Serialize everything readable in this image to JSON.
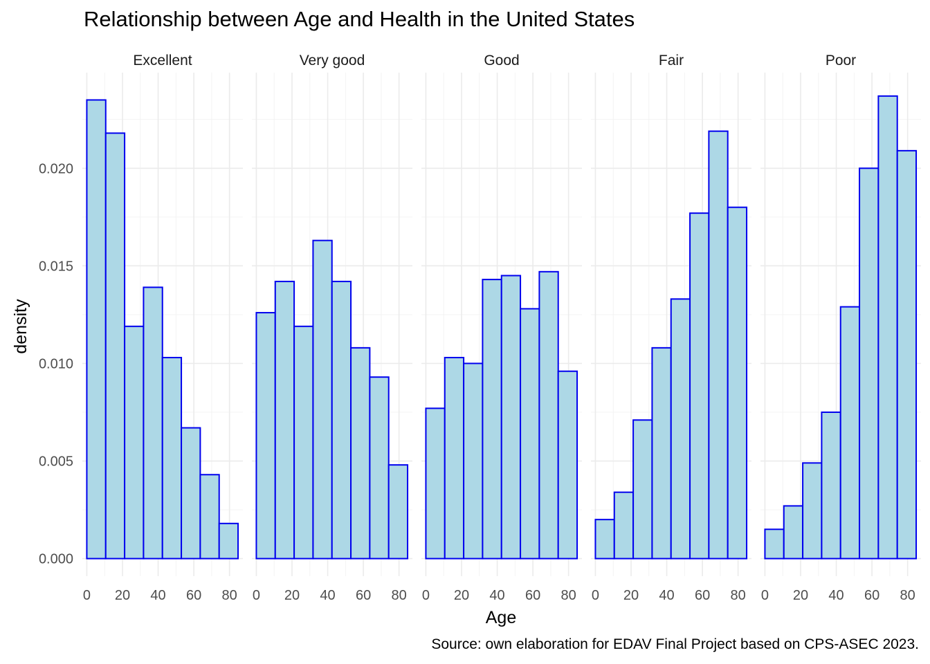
{
  "chart_data": {
    "type": "bar",
    "title": "Relationship between Age and Health in the United States",
    "caption": "Source: own elaboration for EDAV Final Project based on CPS-ASEC 2023.",
    "xlabel": "Age",
    "ylabel": "density",
    "xlim": [
      -2.5,
      87.5
    ],
    "ylim": [
      -0.0009,
      0.0249
    ],
    "x_ticks": [
      0,
      20,
      40,
      60,
      80
    ],
    "y_ticks": [
      0.0,
      0.005,
      0.01,
      0.015,
      0.02
    ],
    "x_tick_labels": [
      "0",
      "20",
      "40",
      "60",
      "80"
    ],
    "y_tick_labels": [
      "0.000",
      "0.005",
      "0.010",
      "0.015",
      "0.020"
    ],
    "bin_edges": [
      0,
      10.6,
      21.2,
      31.8,
      42.4,
      53.0,
      63.6,
      74.2,
      84.8
    ],
    "grid": true,
    "facets": [
      {
        "name": "Excellent",
        "values": [
          0.0235,
          0.0218,
          0.0119,
          0.0139,
          0.0103,
          0.0067,
          0.0043,
          0.0018
        ]
      },
      {
        "name": "Very good",
        "values": [
          0.0126,
          0.0142,
          0.0119,
          0.0163,
          0.0142,
          0.0108,
          0.0093,
          0.0048
        ]
      },
      {
        "name": "Good",
        "values": [
          0.0077,
          0.0103,
          0.01,
          0.0143,
          0.0145,
          0.0128,
          0.0147,
          0.0096
        ]
      },
      {
        "name": "Fair",
        "values": [
          0.002,
          0.0034,
          0.0071,
          0.0108,
          0.0133,
          0.0177,
          0.0219,
          0.018
        ]
      },
      {
        "name": "Poor",
        "values": [
          0.0015,
          0.0027,
          0.0049,
          0.0075,
          0.0129,
          0.02,
          0.0237,
          0.0209
        ]
      }
    ],
    "colors": {
      "fill": "#add8e6",
      "outline": "#0000ee"
    }
  }
}
